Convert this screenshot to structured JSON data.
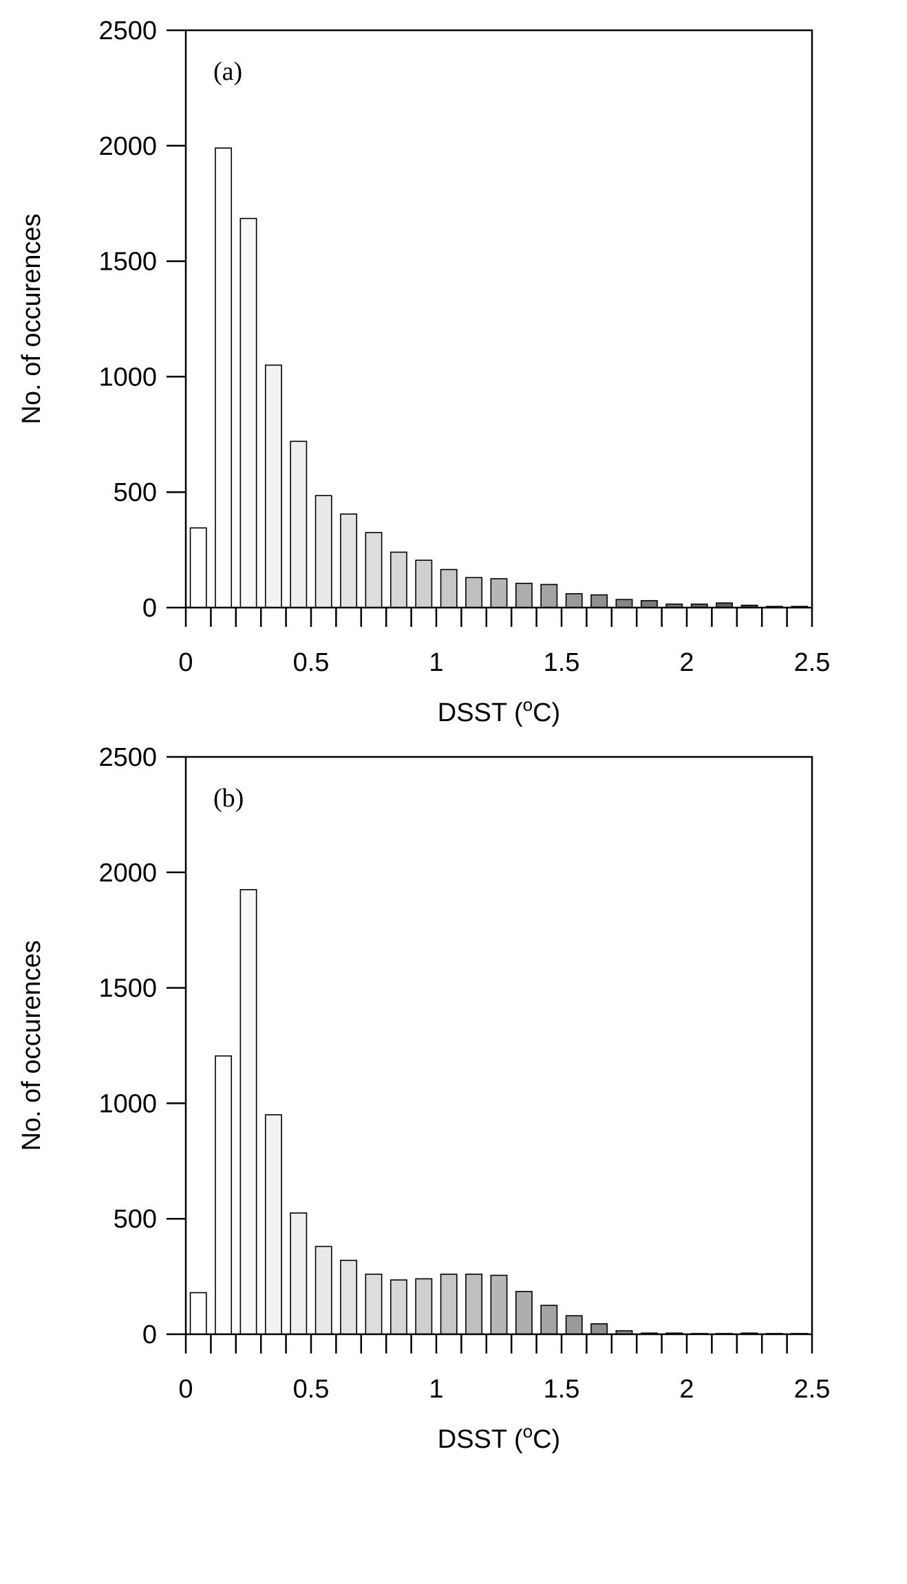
{
  "chart_data": [
    {
      "type": "bar",
      "panel_label": "(a)",
      "xlabel": "DSST (°C)",
      "ylabel": "No. of occurences",
      "xlim": [
        0,
        2.5
      ],
      "ylim": [
        0,
        2500
      ],
      "xticks": [
        "0",
        "0.5",
        "1",
        "1.5",
        "2",
        "2.5"
      ],
      "yticks": [
        "0",
        "500",
        "1000",
        "1500",
        "2000",
        "2500"
      ],
      "bin_width": 0.1,
      "categories": [
        "0.05",
        "0.15",
        "0.25",
        "0.35",
        "0.45",
        "0.55",
        "0.65",
        "0.75",
        "0.85",
        "0.95",
        "1.05",
        "1.15",
        "1.25",
        "1.35",
        "1.45",
        "1.55",
        "1.65",
        "1.75",
        "1.85",
        "1.95",
        "2.05",
        "2.15",
        "2.25",
        "2.35",
        "2.45"
      ],
      "values": [
        345,
        1990,
        1685,
        1050,
        720,
        485,
        405,
        325,
        240,
        205,
        165,
        130,
        125,
        105,
        100,
        60,
        55,
        35,
        30,
        15,
        15,
        20,
        10,
        5,
        5
      ],
      "bar_colors": [
        "#ffffff",
        "#fdfdfd",
        "#f8f8f8",
        "#f3f3f3",
        "#eeeeee",
        "#e9e9e9",
        "#e3e3e3",
        "#dddddd",
        "#d6d6d6",
        "#cfcfcf",
        "#c7c7c7",
        "#bfbfbf",
        "#b6b6b6",
        "#adadad",
        "#a4a4a4",
        "#9a9a9a",
        "#909090",
        "#868686",
        "#7c7c7c",
        "#727272",
        "#686868",
        "#5e5e5e",
        "#545454",
        "#4a4a4a",
        "#404040"
      ],
      "grid": false
    },
    {
      "type": "bar",
      "panel_label": "(b)",
      "xlabel": "DSST (°C)",
      "ylabel": "No. of occurences",
      "xlim": [
        0,
        2.5
      ],
      "ylim": [
        0,
        2500
      ],
      "xticks": [
        "0",
        "0.5",
        "1",
        "1.5",
        "2",
        "2.5"
      ],
      "yticks": [
        "0",
        "500",
        "1000",
        "1500",
        "2000",
        "2500"
      ],
      "bin_width": 0.1,
      "categories": [
        "0.05",
        "0.15",
        "0.25",
        "0.35",
        "0.45",
        "0.55",
        "0.65",
        "0.75",
        "0.85",
        "0.95",
        "1.05",
        "1.15",
        "1.25",
        "1.35",
        "1.45",
        "1.55",
        "1.65",
        "1.75",
        "1.85",
        "1.95",
        "2.05",
        "2.15",
        "2.25",
        "2.35",
        "2.45"
      ],
      "values": [
        180,
        1205,
        1925,
        950,
        525,
        380,
        320,
        260,
        235,
        240,
        260,
        260,
        255,
        185,
        125,
        80,
        45,
        15,
        5,
        5,
        3,
        3,
        5,
        3,
        3
      ],
      "bar_colors": [
        "#ffffff",
        "#fdfdfd",
        "#f8f8f8",
        "#f3f3f3",
        "#eeeeee",
        "#e9e9e9",
        "#e3e3e3",
        "#dddddd",
        "#d6d6d6",
        "#cfcfcf",
        "#c7c7c7",
        "#bfbfbf",
        "#b6b6b6",
        "#adadad",
        "#a4a4a4",
        "#9a9a9a",
        "#909090",
        "#868686",
        "#7c7c7c",
        "#727272",
        "#686868",
        "#5e5e5e",
        "#545454",
        "#4a4a4a",
        "#404040"
      ],
      "grid": false
    }
  ]
}
